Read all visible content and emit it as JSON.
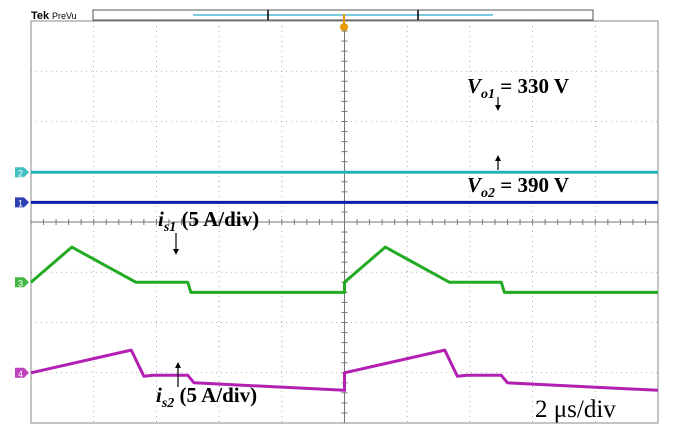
{
  "header": {
    "brand": "Tek",
    "mode": "PreVu"
  },
  "chart_data": {
    "type": "line",
    "title": "",
    "xlabel": "",
    "ylabel": "",
    "grid": true,
    "x_divisions": 10,
    "y_divisions": 8,
    "time_scale": "2 μs/div",
    "x_unit": "μs",
    "xlim": [
      0,
      20
    ],
    "series": [
      {
        "name": "Vo1",
        "color": "#1fb5b5",
        "label_var": "V",
        "label_sub": "o1",
        "label_rest": " = 330 V",
        "description": "DC output voltage",
        "x": [
          0,
          20
        ],
        "y_div": [
          4.99,
          4.99
        ]
      },
      {
        "name": "Vo2",
        "color": "#0b1fa8",
        "label_var": "V",
        "label_sub": "o2",
        "label_rest": " = 390 V",
        "description": "DC output voltage",
        "x": [
          0,
          20
        ],
        "y_div": [
          4.39,
          4.39
        ]
      },
      {
        "name": "is1",
        "color": "#22aa22",
        "label_var": "i",
        "label_sub": "s1",
        "label_rest": " (5 A/div)",
        "x": [
          0,
          1.3,
          3.35,
          5.0,
          5.1,
          10.0,
          10.0,
          11.3,
          13.35,
          15.0,
          15.1,
          20.0
        ],
        "y_div": [
          2.8,
          3.5,
          2.8,
          2.8,
          2.6,
          2.6,
          2.8,
          3.5,
          2.8,
          2.8,
          2.6,
          2.6
        ]
      },
      {
        "name": "is2",
        "color": "#b21fb2",
        "label_var": "i",
        "label_sub": "s2",
        "label_rest": " (5 A/div)",
        "x": [
          0,
          3.2,
          3.6,
          3.9,
          5.0,
          5.2,
          10.0,
          10.0,
          13.2,
          13.6,
          13.9,
          15.0,
          15.2,
          20.0
        ],
        "y_div": [
          1.0,
          1.45,
          0.93,
          0.95,
          0.95,
          0.8,
          0.65,
          1.0,
          1.45,
          0.93,
          0.95,
          0.95,
          0.8,
          0.65
        ]
      }
    ],
    "channel_markers": [
      {
        "id": "2",
        "series": "Vo1",
        "color": "#1fb5b5"
      },
      {
        "id": "1",
        "series": "Vo2",
        "color": "#0b1fa8"
      },
      {
        "id": "3",
        "series": "is1",
        "color": "#22aa22"
      },
      {
        "id": "4",
        "series": "is2",
        "color": "#b21fb2"
      }
    ]
  }
}
